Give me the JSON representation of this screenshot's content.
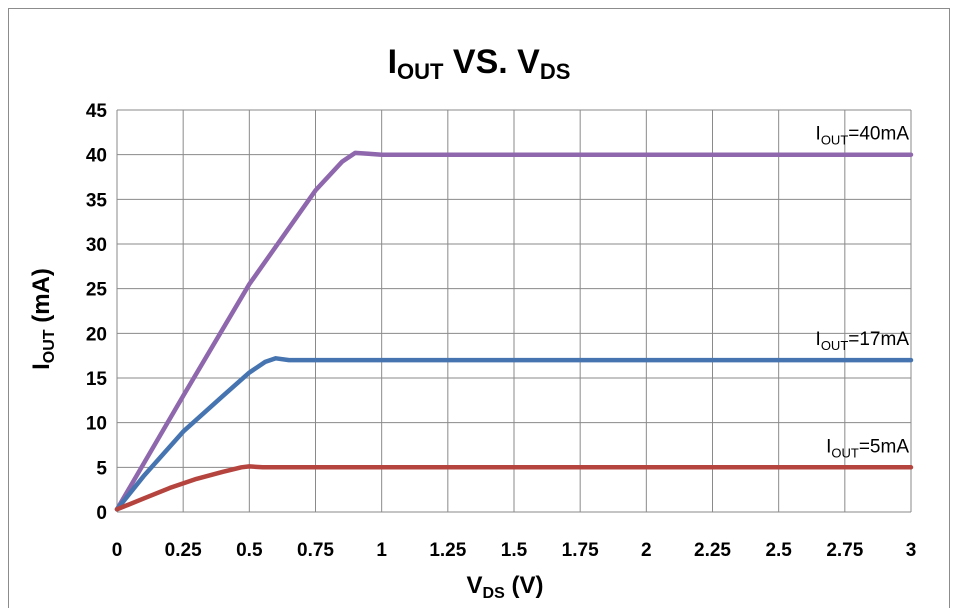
{
  "chart_data": {
    "type": "line",
    "title": {
      "main": "I",
      "sub": "OUT",
      "rest": " VS. V",
      "sub2": "DS"
    },
    "xlabel": {
      "main": "V",
      "sub": "DS",
      "rest": " (V)"
    },
    "ylabel": {
      "main": "I",
      "sub": "OUT",
      "rest": " (mA)"
    },
    "xlim": [
      0,
      3
    ],
    "ylim": [
      0,
      45
    ],
    "xticks": [
      0,
      0.25,
      0.5,
      0.75,
      1,
      1.25,
      1.5,
      1.75,
      2,
      2.25,
      2.5,
      2.75,
      3
    ],
    "xtick_labels": [
      "0",
      "0.25",
      "0.5",
      "0.75",
      "1",
      "1.25",
      "1.5",
      "1.75",
      "2",
      "2.25",
      "2.5",
      "2.75",
      "3"
    ],
    "yticks": [
      0,
      5,
      10,
      15,
      20,
      25,
      30,
      35,
      40,
      45
    ],
    "ytick_labels": [
      "0",
      "5",
      "10",
      "15",
      "20",
      "25",
      "30",
      "35",
      "40",
      "45"
    ],
    "grid": true,
    "legend": "none",
    "series": [
      {
        "label": {
          "main": "I",
          "sub": "OUT",
          "rest": "=40mA"
        },
        "color": "#8e67ad",
        "x": [
          0,
          0.25,
          0.5,
          0.75,
          0.85,
          0.9,
          0.95,
          1.0,
          1.5,
          2.0,
          2.5,
          3.0
        ],
        "y": [
          0.3,
          13.0,
          25.5,
          36.0,
          39.2,
          40.2,
          40.1,
          40.0,
          40.0,
          40.0,
          40.0,
          40.0
        ]
      },
      {
        "label": {
          "main": "I",
          "sub": "OUT",
          "rest": "=17mA"
        },
        "color": "#4674b0",
        "x": [
          0,
          0.1,
          0.25,
          0.4,
          0.5,
          0.56,
          0.6,
          0.65,
          0.7,
          1.0,
          2.0,
          3.0
        ],
        "y": [
          0.3,
          4.0,
          9.0,
          13.0,
          15.6,
          16.8,
          17.2,
          17.0,
          17.0,
          17.0,
          17.0,
          17.0
        ]
      },
      {
        "label": {
          "main": "I",
          "sub": "OUT",
          "rest": "=5mA"
        },
        "color": "#b5443f",
        "x": [
          0,
          0.1,
          0.2,
          0.3,
          0.4,
          0.47,
          0.5,
          0.55,
          1.0,
          2.0,
          3.0
        ],
        "y": [
          0.3,
          1.5,
          2.7,
          3.7,
          4.5,
          5.0,
          5.1,
          5.0,
          5.0,
          5.0,
          5.0
        ]
      }
    ]
  }
}
